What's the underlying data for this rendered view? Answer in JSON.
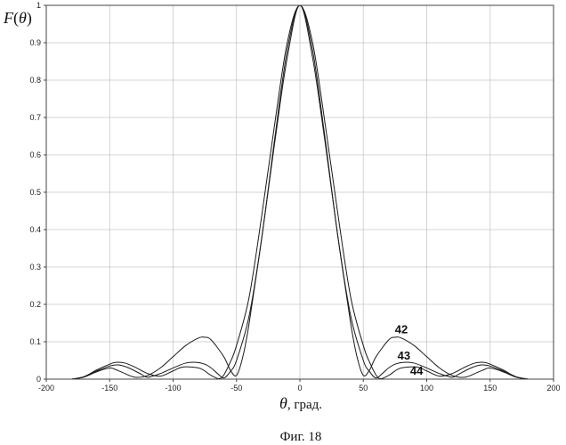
{
  "chart_data": {
    "type": "line",
    "ylabel": "F(θ)",
    "xlabel": "θ, град.",
    "caption": "Фиг. 18",
    "xlim": [
      -200,
      200
    ],
    "ylim": [
      0,
      1
    ],
    "xticks": [
      -200,
      -150,
      -100,
      -50,
      0,
      50,
      100,
      150,
      200
    ],
    "xtick_labels": [
      "-200",
      "-150",
      "-100",
      "-50",
      "0",
      "50",
      "100",
      "150",
      "200"
    ],
    "yticks": [
      0,
      0.1,
      0.2,
      0.3,
      0.4,
      0.5,
      0.6,
      0.7,
      0.8,
      0.9,
      1
    ],
    "ytick_labels": [
      "0",
      "0.1",
      "0.2",
      "0.3",
      "0.4",
      "0.5",
      "0.6",
      "0.7",
      "0.8",
      "0.9",
      "1"
    ],
    "grid": true,
    "series": [
      {
        "name": "42",
        "x": [
          -180,
          -170,
          -160,
          -150,
          -145,
          -140,
          -130,
          -120,
          -110,
          -100,
          -90,
          -80,
          -75,
          -70,
          -60,
          -55,
          -50,
          -45,
          -40,
          -30,
          -20,
          -10,
          0,
          10,
          20,
          30,
          40,
          45,
          50,
          55,
          60,
          70,
          75,
          80,
          90,
          100,
          110,
          120,
          130,
          140,
          145,
          150,
          160,
          170,
          180
        ],
        "y": [
          0,
          0.006,
          0.02,
          0.03,
          0.025,
          0.018,
          0.005,
          0.01,
          0.03,
          0.06,
          0.09,
          0.11,
          0.112,
          0.105,
          0.06,
          0.025,
          0.01,
          0.06,
          0.15,
          0.38,
          0.63,
          0.86,
          1,
          0.86,
          0.63,
          0.38,
          0.15,
          0.06,
          0.01,
          0.025,
          0.06,
          0.105,
          0.112,
          0.11,
          0.09,
          0.06,
          0.03,
          0.01,
          0.005,
          0.018,
          0.025,
          0.03,
          0.02,
          0.006,
          0
        ]
      },
      {
        "name": "43",
        "x": [
          -180,
          -170,
          -160,
          -150,
          -143,
          -135,
          -125,
          -120,
          -110,
          -100,
          -90,
          -82,
          -75,
          -70,
          -65,
          -60,
          -55,
          -50,
          -40,
          -30,
          -20,
          -10,
          0,
          10,
          20,
          30,
          40,
          50,
          55,
          60,
          65,
          70,
          75,
          82,
          90,
          100,
          110,
          120,
          125,
          135,
          143,
          150,
          160,
          170,
          180
        ],
        "y": [
          0,
          0.006,
          0.022,
          0.035,
          0.038,
          0.03,
          0.013,
          0.005,
          0.015,
          0.03,
          0.043,
          0.045,
          0.04,
          0.03,
          0.015,
          0.003,
          0.02,
          0.05,
          0.17,
          0.38,
          0.64,
          0.88,
          1,
          0.88,
          0.64,
          0.38,
          0.17,
          0.05,
          0.02,
          0.003,
          0.015,
          0.03,
          0.04,
          0.045,
          0.043,
          0.03,
          0.015,
          0.005,
          0.013,
          0.03,
          0.038,
          0.035,
          0.022,
          0.006,
          0
        ]
      },
      {
        "name": "44",
        "x": [
          -180,
          -170,
          -160,
          -150,
          -145,
          -138,
          -130,
          -120,
          -110,
          -100,
          -95,
          -90,
          -80,
          -75,
          -70,
          -62,
          -55,
          -50,
          -40,
          -30,
          -20,
          -10,
          0,
          10,
          20,
          30,
          40,
          50,
          55,
          62,
          70,
          75,
          80,
          90,
          95,
          100,
          110,
          120,
          130,
          138,
          145,
          150,
          160,
          170,
          180
        ],
        "y": [
          0,
          0.007,
          0.025,
          0.04,
          0.045,
          0.043,
          0.032,
          0.015,
          0.008,
          0.022,
          0.03,
          0.033,
          0.03,
          0.022,
          0.01,
          0.003,
          0.045,
          0.09,
          0.22,
          0.44,
          0.68,
          0.9,
          1,
          0.9,
          0.68,
          0.44,
          0.22,
          0.09,
          0.045,
          0.003,
          0.01,
          0.022,
          0.03,
          0.033,
          0.03,
          0.022,
          0.008,
          0.015,
          0.032,
          0.043,
          0.045,
          0.04,
          0.025,
          0.007,
          0
        ]
      }
    ],
    "annotations": [
      {
        "text": "42",
        "x": 80,
        "y": 0.123
      },
      {
        "text": "43",
        "x": 82,
        "y": 0.052
      },
      {
        "text": "44",
        "x": 92,
        "y": 0.012
      }
    ]
  }
}
